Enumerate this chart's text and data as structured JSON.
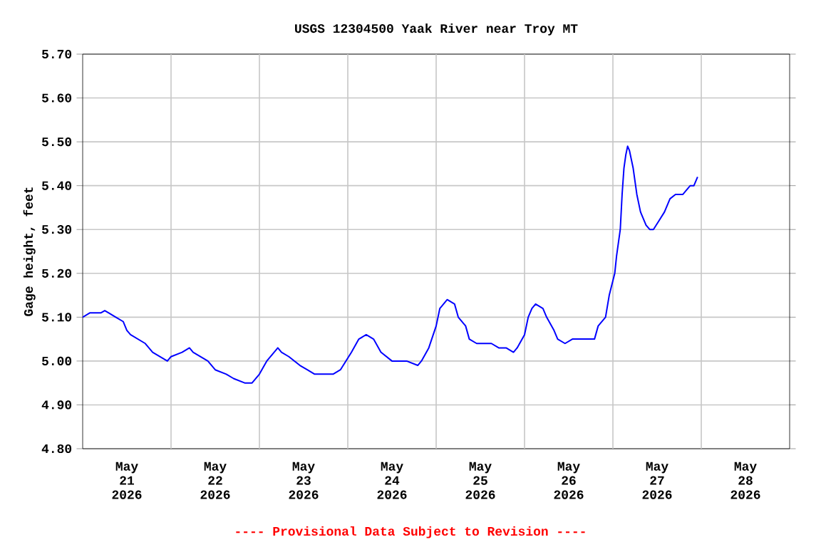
{
  "chart_data": {
    "type": "line",
    "title": "USGS 12304500 Yaak River near Troy MT",
    "ylabel": "Gage height, feet",
    "annotations": [
      "---- Provisional Data Subject to Revision ----"
    ],
    "xlim": [
      "2026-05-21T00:00",
      "2026-05-29T00:00"
    ],
    "xticks": [
      {
        "value": "2026-05-21T12:00",
        "label": "May 21 2026"
      },
      {
        "value": "2026-05-22T12:00",
        "label": "May 22 2026"
      },
      {
        "value": "2026-05-23T12:00",
        "label": "May 23 2026"
      },
      {
        "value": "2026-05-24T12:00",
        "label": "May 24 2026"
      },
      {
        "value": "2026-05-25T12:00",
        "label": "May 25 2026"
      },
      {
        "value": "2026-05-26T12:00",
        "label": "May 26 2026"
      },
      {
        "value": "2026-05-27T12:00",
        "label": "May 27 2026"
      },
      {
        "value": "2026-05-28T12:00",
        "label": "May 28 2026"
      },
      {
        "value": "2026-05-22T00:00",
        "label": null
      },
      {
        "value": "2026-05-23T00:00",
        "label": null
      },
      {
        "value": "2026-05-24T00:00",
        "label": null
      },
      {
        "value": "2026-05-25T00:00",
        "label": null
      },
      {
        "value": "2026-05-26T00:00",
        "label": null
      },
      {
        "value": "2026-05-27T00:00",
        "label": null
      },
      {
        "value": "2026-05-28T00:00",
        "label": null
      }
    ],
    "ylim": [
      4.8,
      5.7
    ],
    "yticks": [
      {
        "value": 4.8,
        "label": "4.80"
      },
      {
        "value": 4.9,
        "label": "4.90"
      },
      {
        "value": 5.0,
        "label": "5.00"
      },
      {
        "value": 5.1,
        "label": "5.10"
      },
      {
        "value": 5.2,
        "label": "5.20"
      },
      {
        "value": 5.3,
        "label": "5.30"
      },
      {
        "value": 5.4,
        "label": "5.40"
      },
      {
        "value": 5.5,
        "label": "5.50"
      },
      {
        "value": 5.6,
        "label": "5.60"
      },
      {
        "value": 5.7,
        "label": "5.70"
      }
    ],
    "grid": true,
    "series": [
      {
        "color": "#0000ff",
        "x": [
          "2026-05-21T00:00",
          "2026-05-21T02:00",
          "2026-05-21T05:00",
          "2026-05-21T06:00",
          "2026-05-21T07:00",
          "2026-05-21T09:00",
          "2026-05-21T11:00",
          "2026-05-21T12:00",
          "2026-05-21T13:00",
          "2026-05-21T15:00",
          "2026-05-21T17:00",
          "2026-05-21T19:00",
          "2026-05-21T21:00",
          "2026-05-21T23:00",
          "2026-05-22T00:00",
          "2026-05-22T03:00",
          "2026-05-22T05:00",
          "2026-05-22T06:00",
          "2026-05-22T08:00",
          "2026-05-22T10:00",
          "2026-05-22T12:00",
          "2026-05-22T15:00",
          "2026-05-22T17:00",
          "2026-05-22T20:00",
          "2026-05-22T22:00",
          "2026-05-23T00:00",
          "2026-05-23T02:00",
          "2026-05-23T05:00",
          "2026-05-23T06:00",
          "2026-05-23T08:00",
          "2026-05-23T11:00",
          "2026-05-23T13:00",
          "2026-05-23T15:00",
          "2026-05-23T20:00",
          "2026-05-23T22:00",
          "2026-05-24T01:00",
          "2026-05-24T03:00",
          "2026-05-24T05:00",
          "2026-05-24T07:00",
          "2026-05-24T09:00",
          "2026-05-24T12:00",
          "2026-05-24T16:00",
          "2026-05-24T19:00",
          "2026-05-24T20:00",
          "2026-05-24T22:00",
          "2026-05-25T00:00",
          "2026-05-25T01:00",
          "2026-05-25T03:00",
          "2026-05-25T05:00",
          "2026-05-25T06:00",
          "2026-05-25T08:00",
          "2026-05-25T09:00",
          "2026-05-25T11:00",
          "2026-05-25T15:00",
          "2026-05-25T17:00",
          "2026-05-25T19:00",
          "2026-05-25T21:00",
          "2026-05-25T22:00",
          "2026-05-26T00:00",
          "2026-05-26T01:00",
          "2026-05-26T02:00",
          "2026-05-26T03:00",
          "2026-05-26T05:00",
          "2026-05-26T06:00",
          "2026-05-26T08:00",
          "2026-05-26T09:00",
          "2026-05-26T11:00",
          "2026-05-26T13:00",
          "2026-05-26T17:00",
          "2026-05-26T19:00",
          "2026-05-26T20:00",
          "2026-05-26T22:00",
          "2026-05-26T23:00",
          "2026-05-27T00:30",
          "2026-05-27T01:00",
          "2026-05-27T02:00",
          "2026-05-27T02:30",
          "2026-05-27T03:00",
          "2026-05-27T03:30",
          "2026-05-27T04:00",
          "2026-05-27T04:30",
          "2026-05-27T05:30",
          "2026-05-27T06:30",
          "2026-05-27T07:30",
          "2026-05-27T09:00",
          "2026-05-27T10:00",
          "2026-05-27T11:00",
          "2026-05-27T12:30",
          "2026-05-27T14:00",
          "2026-05-27T15:30",
          "2026-05-27T17:00",
          "2026-05-27T19:00",
          "2026-05-27T21:00",
          "2026-05-27T22:00",
          "2026-05-27T23:00"
        ],
        "values": [
          5.1,
          5.11,
          5.11,
          5.115,
          5.11,
          5.1,
          5.09,
          5.07,
          5.06,
          5.05,
          5.04,
          5.02,
          5.01,
          5.0,
          5.01,
          5.02,
          5.03,
          5.02,
          5.01,
          5.0,
          4.98,
          4.97,
          4.96,
          4.95,
          4.95,
          4.97,
          5.0,
          5.03,
          5.02,
          5.01,
          4.99,
          4.98,
          4.97,
          4.97,
          4.98,
          5.02,
          5.05,
          5.06,
          5.05,
          5.02,
          5.0,
          5.0,
          4.99,
          5.0,
          5.03,
          5.08,
          5.12,
          5.14,
          5.13,
          5.1,
          5.08,
          5.05,
          5.04,
          5.04,
          5.03,
          5.03,
          5.02,
          5.03,
          5.06,
          5.1,
          5.12,
          5.13,
          5.12,
          5.1,
          5.07,
          5.05,
          5.04,
          5.05,
          5.05,
          5.05,
          5.08,
          5.1,
          5.15,
          5.2,
          5.24,
          5.3,
          5.38,
          5.44,
          5.47,
          5.49,
          5.48,
          5.44,
          5.38,
          5.34,
          5.31,
          5.3,
          5.3,
          5.32,
          5.34,
          5.37,
          5.38,
          5.38,
          5.4,
          5.4,
          5.42
        ]
      }
    ]
  }
}
